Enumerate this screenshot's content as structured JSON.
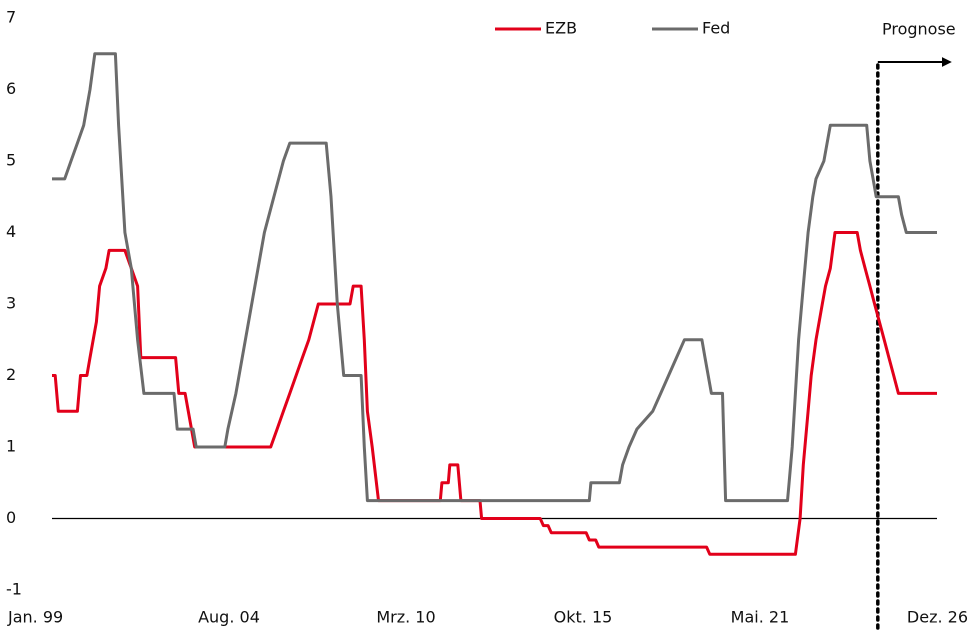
{
  "chart_data": {
    "type": "line",
    "xlim": [
      1999.0,
      2026.917
    ],
    "xticks": [
      {
        "value": 1999.0,
        "label": "Jan. 99"
      },
      {
        "value": 2004.583,
        "label": "Aug. 04"
      },
      {
        "value": 2010.167,
        "label": "Mrz. 10"
      },
      {
        "value": 2015.75,
        "label": "Okt. 15"
      },
      {
        "value": 2021.333,
        "label": "Mai. 21"
      },
      {
        "value": 2026.917,
        "label": "Dez. 26"
      }
    ],
    "ylim": [
      -1,
      7
    ],
    "yticks": [
      -1,
      0,
      1,
      2,
      3,
      4,
      5,
      6,
      7
    ],
    "grid": false,
    "legend": "top",
    "annotations": [
      {
        "text": "Prognose",
        "x": 2025.05
      }
    ],
    "series": [
      {
        "name": "EZB",
        "color": "#e2001a",
        "x": [
          1999.0,
          1999.1,
          1999.2,
          1999.8,
          1999.9,
          2000.1,
          2000.2,
          2000.4,
          2000.5,
          2000.7,
          2000.8,
          2001.3,
          2001.5,
          2001.7,
          2001.8,
          2002.9,
          2003.0,
          2003.2,
          2003.3,
          2003.5,
          2005.9,
          2006.1,
          2006.3,
          2006.5,
          2006.7,
          2006.9,
          2007.1,
          2007.4,
          2008.4,
          2008.5,
          2008.75,
          2008.85,
          2008.95,
          2009.1,
          2009.3,
          2011.25,
          2011.3,
          2011.5,
          2011.55,
          2011.8,
          2011.9,
          2012.5,
          2012.55,
          2014.4,
          2014.5,
          2014.65,
          2014.75,
          2015.85,
          2015.95,
          2016.15,
          2016.25,
          2019.65,
          2019.75,
          2022.45,
          2022.6,
          2022.7,
          2022.85,
          2022.95,
          2023.1,
          2023.3,
          2023.4,
          2023.55,
          2023.7,
          2024.4,
          2024.5,
          2024.65,
          2024.8,
          2024.95,
          2025.1,
          2025.25,
          2025.4,
          2025.55,
          2025.7,
          2026.917
        ],
        "values": [
          2,
          2,
          1.5,
          1.5,
          2,
          2,
          2.25,
          2.75,
          3.25,
          3.5,
          3.75,
          3.75,
          3.5,
          3.25,
          2.25,
          2.25,
          1.75,
          1.75,
          1.5,
          1.0,
          1.0,
          1.25,
          1.5,
          1.75,
          2.0,
          2.25,
          2.5,
          3.0,
          3.0,
          3.25,
          3.25,
          2.5,
          1.5,
          1.0,
          0.25,
          0.25,
          0.5,
          0.5,
          0.75,
          0.75,
          0.25,
          0.25,
          0,
          0,
          -0.1,
          -0.1,
          -0.2,
          -0.2,
          -0.3,
          -0.3,
          -0.4,
          -0.4,
          -0.5,
          -0.5,
          0,
          0.75,
          1.5,
          2.0,
          2.5,
          3.0,
          3.25,
          3.5,
          4.0,
          4.0,
          3.75,
          3.5,
          3.25,
          3.0,
          2.75,
          2.5,
          2.25,
          2.0,
          1.75,
          1.75
        ]
      },
      {
        "name": "Fed",
        "color": "#6b6b6b",
        "x": [
          1999.0,
          1999.4,
          1999.6,
          1999.8,
          2000.0,
          2000.2,
          2000.35,
          2000.45,
          2001.0,
          2001.1,
          2001.3,
          2001.5,
          2001.7,
          2001.9,
          2002.0,
          2002.85,
          2002.95,
          2003.45,
          2003.55,
          2004.45,
          2004.55,
          2004.8,
          2005.1,
          2005.4,
          2005.7,
          2006.0,
          2006.3,
          2006.5,
          2007.65,
          2007.8,
          2008.0,
          2008.2,
          2008.35,
          2008.75,
          2008.85,
          2008.95,
          2015.95,
          2016.0,
          2016.9,
          2017.0,
          2017.2,
          2017.45,
          2017.95,
          2018.2,
          2018.45,
          2018.7,
          2018.95,
          2019.5,
          2019.6,
          2019.7,
          2019.8,
          2020.15,
          2020.25,
          2022.2,
          2022.25,
          2022.35,
          2022.45,
          2022.55,
          2022.7,
          2022.85,
          2023.0,
          2023.1,
          2023.35,
          2023.55,
          2024.7,
          2024.8,
          2024.9,
          2025.0,
          2025.7,
          2025.8,
          2025.95,
          2026.917
        ],
        "values": [
          4.75,
          4.75,
          5.0,
          5.25,
          5.5,
          6.0,
          6.5,
          6.5,
          6.5,
          5.5,
          4.0,
          3.5,
          2.5,
          1.75,
          1.75,
          1.75,
          1.25,
          1.25,
          1.0,
          1.0,
          1.25,
          1.75,
          2.5,
          3.25,
          4.0,
          4.5,
          5.0,
          5.25,
          5.25,
          4.5,
          3.0,
          2.0,
          2.0,
          2.0,
          1.0,
          0.25,
          0.25,
          0.5,
          0.5,
          0.75,
          1.0,
          1.25,
          1.5,
          1.75,
          2.0,
          2.25,
          2.5,
          2.5,
          2.25,
          2.0,
          1.75,
          1.75,
          0.25,
          0.25,
          0.5,
          1.0,
          1.75,
          2.5,
          3.25,
          4.0,
          4.5,
          4.75,
          5.0,
          5.5,
          5.5,
          5.0,
          4.75,
          4.5,
          4.5,
          4.25,
          4.0,
          4.0
        ]
      }
    ]
  }
}
